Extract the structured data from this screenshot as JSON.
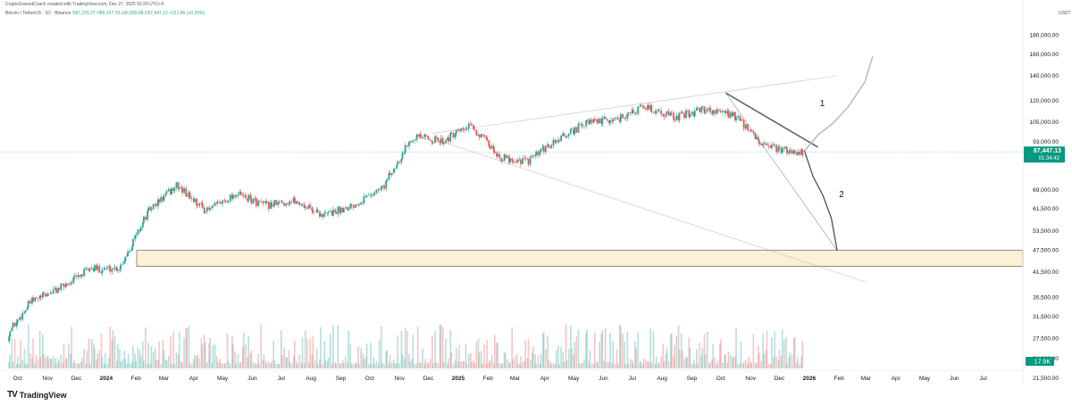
{
  "header": {
    "credit": "CryptoGravedCoach created with TradingView.com, Dec 27, 2025 02:29 UTC+4",
    "symbol": "Bitcoin / TetherUS · 1D · Binance",
    "ohlc": "O87,225.27 H89,107.79 L86,559.08 C87,447.13 +221.86 (+0.25%)"
  },
  "brand": {
    "name": "TradingView",
    "logo": "TV"
  },
  "colors": {
    "up": "#26a69a",
    "down": "#ef5350",
    "projection": "#b2b5be",
    "zone_fill": "#fdf1d5",
    "zone_stroke": "#4a4a4a",
    "price_tag": "#089981"
  },
  "chart_data": {
    "type": "candlestick",
    "currency": "USDT",
    "y_scale": "log",
    "ylim": [
      23000,
      195000
    ],
    "x_axis": {
      "labels": [
        "Oct",
        "Nov",
        "Dec",
        "2024",
        "Feb",
        "Mar",
        "Apr",
        "May",
        "Jun",
        "Jul",
        "Aug",
        "Sep",
        "Oct",
        "Nov",
        "Dec",
        "2025",
        "Feb",
        "Mar",
        "Apr",
        "May",
        "Jun",
        "Jul",
        "Aug",
        "Sep",
        "Oct",
        "Nov",
        "Dec",
        "2026",
        "Feb",
        "Mar",
        "Apr",
        "May",
        "Jun",
        "Jul"
      ],
      "bold": [
        "2024",
        "2025",
        "2026"
      ]
    },
    "y_ticks": [
      180000,
      160000,
      140000,
      120000,
      105000,
      93000,
      69000,
      61500,
      53500,
      47500,
      41500,
      35500,
      31500,
      27500,
      24300,
      21500
    ],
    "y_tick_labels": [
      "180,000.00",
      "160,000.00",
      "140,000.00",
      "120,000.00",
      "105,000.00",
      "93,000.00",
      "69,000.00",
      "61,500.00",
      "53,500.00",
      "47,500.00",
      "41,500.00",
      "35,500.00",
      "31,500.00",
      "27,500.00",
      "24,300.00",
      "21,500.00"
    ],
    "last_price": {
      "value": 87447.13,
      "label": "87,447.13",
      "countdown": "01:34:42"
    },
    "volume_label": "17.9K",
    "monthly_close": [
      {
        "m": "2023-09",
        "v": 27000
      },
      {
        "m": "2023-10",
        "v": 34500
      },
      {
        "m": "2023-11",
        "v": 37700
      },
      {
        "m": "2023-12",
        "v": 42300
      },
      {
        "m": "2024-01",
        "v": 42600
      },
      {
        "m": "2024-02",
        "v": 61000
      },
      {
        "m": "2024-03",
        "v": 71000
      },
      {
        "m": "2024-04",
        "v": 60600
      },
      {
        "m": "2024-05",
        "v": 67500
      },
      {
        "m": "2024-06",
        "v": 62700
      },
      {
        "m": "2024-07",
        "v": 64600
      },
      {
        "m": "2024-08",
        "v": 59000
      },
      {
        "m": "2024-09",
        "v": 63300
      },
      {
        "m": "2024-10",
        "v": 70200
      },
      {
        "m": "2024-11",
        "v": 96400
      },
      {
        "m": "2024-12",
        "v": 93400
      },
      {
        "m": "2025-01",
        "v": 102400
      },
      {
        "m": "2025-02",
        "v": 84300
      },
      {
        "m": "2025-03",
        "v": 82500
      },
      {
        "m": "2025-04",
        "v": 94200
      },
      {
        "m": "2025-05",
        "v": 104600
      },
      {
        "m": "2025-06",
        "v": 107100
      },
      {
        "m": "2025-07",
        "v": 115700
      },
      {
        "m": "2025-08",
        "v": 108200
      },
      {
        "m": "2025-09",
        "v": 114000
      },
      {
        "m": "2025-10",
        "v": 109600
      },
      {
        "m": "2025-11",
        "v": 90400
      },
      {
        "m": "2025-12",
        "v": 87447
      }
    ],
    "projections": [
      {
        "label": "1",
        "path": [
          [
            "2025-12-27",
            88000
          ],
          [
            "2026-01-10",
            97000
          ],
          [
            "2026-01-25",
            104000
          ],
          [
            "2026-02-10",
            115000
          ],
          [
            "2026-02-28",
            135000
          ],
          [
            "2026-03-08",
            158000
          ]
        ]
      },
      {
        "label": "2",
        "path": [
          [
            "2025-12-27",
            88000
          ],
          [
            "2026-01-05",
            75000
          ],
          [
            "2026-01-15",
            67000
          ],
          [
            "2026-01-24",
            58000
          ],
          [
            "2026-01-30",
            47500
          ]
        ]
      }
    ],
    "support_zone": [
      43000,
      47500
    ],
    "trendlines": [
      {
        "from": [
          "2024-12-05",
          98000
        ],
        "to": [
          "2026-01-30",
          140000
        ]
      },
      {
        "from": [
          "2024-12-05",
          95000
        ],
        "to": [
          "2026-03-01",
          39000
        ]
      },
      {
        "from": [
          "2025-10-06",
          126000
        ],
        "to": [
          "2026-01-10",
          90000
        ]
      },
      {
        "from": [
          "2025-10-06",
          126000
        ],
        "to": [
          "2026-01-30",
          47500
        ]
      }
    ]
  }
}
